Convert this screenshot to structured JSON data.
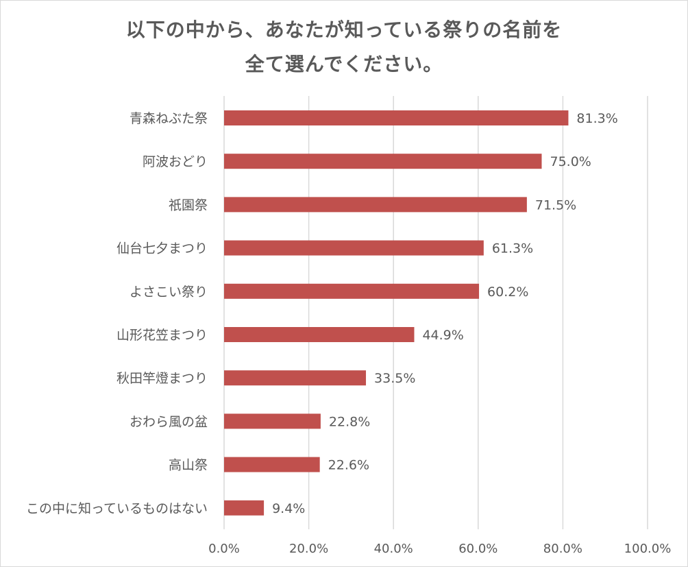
{
  "chart_data": {
    "type": "bar",
    "orientation": "horizontal",
    "title_line1": "以下の中から、あなたが知っている祭りの名前を",
    "title_line2": "全て選んでください。",
    "categories": [
      "青森ねぶた祭",
      "阿波おどり",
      "祇園祭",
      "仙台七夕まつり",
      "よさこい祭り",
      "山形花笠まつり",
      "秋田竿燈まつり",
      "おわら風の盆",
      "高山祭",
      "この中に知っているものはない"
    ],
    "values": [
      81.3,
      75.0,
      71.5,
      61.3,
      60.2,
      44.9,
      33.5,
      22.8,
      22.6,
      9.4
    ],
    "value_labels": [
      "81.3%",
      "75.0%",
      "71.5%",
      "61.3%",
      "60.2%",
      "44.9%",
      "33.5%",
      "22.8%",
      "22.6%",
      "9.4%"
    ],
    "xlim": [
      0,
      100
    ],
    "xticks": [
      0,
      20,
      40,
      60,
      80,
      100
    ],
    "xtick_labels": [
      "0.0%",
      "20.0%",
      "40.0%",
      "60.0%",
      "80.0%",
      "100.0%"
    ],
    "grid": true,
    "bar_color": "#c0504d",
    "grid_color": "#d9d9d9"
  }
}
